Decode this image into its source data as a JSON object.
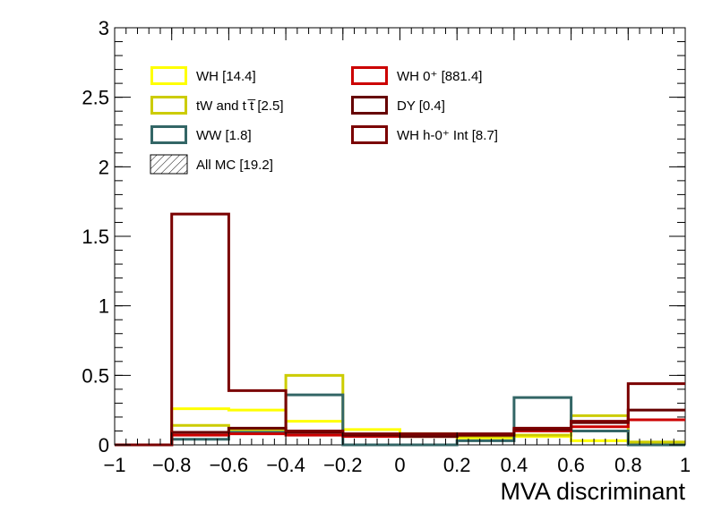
{
  "chart_data": {
    "type": "step histogram",
    "xlabel": "MVA discriminant",
    "ylabel": "",
    "xlim": [
      -1,
      1
    ],
    "ylim": [
      0,
      3
    ],
    "x_ticks": [
      -1,
      -0.8,
      -0.6,
      -0.4,
      -0.2,
      0,
      0.2,
      0.4,
      0.6,
      0.8,
      1
    ],
    "x_tick_labels": [
      "−1",
      "−0.8",
      "−0.6",
      "−0.4",
      "−0.2",
      "0",
      "0.2",
      "0.4",
      "0.6",
      "0.8",
      "1"
    ],
    "y_ticks": [
      0,
      0.5,
      1,
      1.5,
      2,
      2.5,
      3
    ],
    "y_tick_labels": [
      "0",
      "0.5",
      "1",
      "1.5",
      "2",
      "2.5",
      "3"
    ],
    "bin_edges": [
      -1,
      -0.8,
      -0.6,
      -0.4,
      -0.2,
      0,
      0.2,
      0.4,
      0.6,
      0.8,
      1
    ],
    "grid": false,
    "legend_position": "top-left, two columns",
    "series": [
      {
        "name": "WH [14.4]",
        "color": "#ffff00",
        "values": [
          0,
          0.26,
          0.25,
          0.17,
          0.11,
          0.08,
          0.05,
          0.06,
          0.03,
          0.02
        ]
      },
      {
        "name": "tW and t t̅ [2.5]",
        "color": "#cccc00",
        "values": [
          0,
          0.14,
          0.11,
          0.5,
          0.07,
          0.06,
          0.06,
          0.07,
          0.21,
          0.02
        ]
      },
      {
        "name": "WW [1.8]",
        "color": "#336666",
        "values": [
          0,
          0.04,
          0.09,
          0.36,
          0,
          0,
          0.03,
          0.34,
          0.1,
          0
        ]
      },
      {
        "name": "All MC [19.2]",
        "color": "#000000",
        "hatched": true,
        "values": []
      },
      {
        "name": "WH 0⁺ [881.4]",
        "color": "#cc0000",
        "values": [
          0,
          0.07,
          0.08,
          0.07,
          0.06,
          0.06,
          0.07,
          0.1,
          0.13,
          0.18
        ]
      },
      {
        "name": "DY [0.4]",
        "color": "#660000",
        "values": [
          0,
          0.09,
          0.12,
          0.09,
          0.07,
          0.06,
          0.07,
          0.11,
          0.16,
          0.25
        ]
      },
      {
        "name": "WH h-0⁺ Int [8.7]",
        "color": "#7a0000",
        "values": [
          0,
          1.66,
          0.39,
          0.1,
          0.08,
          0.08,
          0.08,
          0.12,
          0.17,
          0.44
        ]
      }
    ]
  }
}
